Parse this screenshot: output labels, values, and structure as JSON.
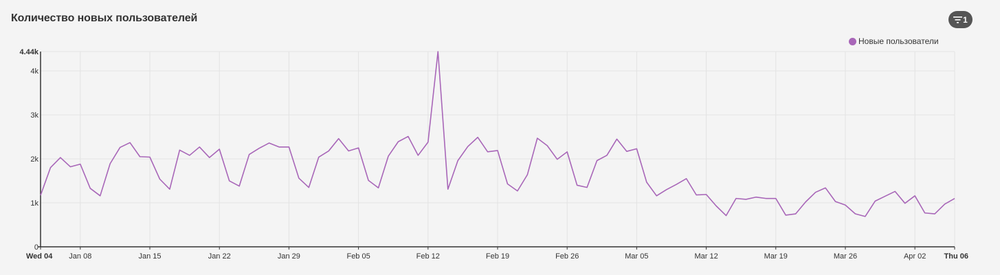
{
  "header": {
    "title": "Количество новых пользователей",
    "filter_count": "1"
  },
  "colors": {
    "series": "#a866b8",
    "grid": "#e3e3e3",
    "axis": "#333333",
    "background": "#f4f4f4"
  },
  "icons": {
    "filter": "filter-icon"
  },
  "chart_data": {
    "type": "line",
    "legend_position": "top-right",
    "grid": true,
    "ylim": [
      0,
      4440
    ],
    "y_ticks": [
      {
        "value": 0,
        "label": "0"
      },
      {
        "value": 1000,
        "label": "1k"
      },
      {
        "value": 2000,
        "label": "2k"
      },
      {
        "value": 3000,
        "label": "3k"
      },
      {
        "value": 4000,
        "label": "4k"
      },
      {
        "value": 4440,
        "label": "4.44k",
        "bold": true
      }
    ],
    "x_ticks": [
      {
        "index": 0,
        "label": "Wed 04",
        "bold": true
      },
      {
        "index": 4,
        "label": "Jan 08"
      },
      {
        "index": 11,
        "label": "Jan 15"
      },
      {
        "index": 18,
        "label": "Jan 22"
      },
      {
        "index": 25,
        "label": "Jan 29"
      },
      {
        "index": 32,
        "label": "Feb 05"
      },
      {
        "index": 39,
        "label": "Feb 12"
      },
      {
        "index": 46,
        "label": "Feb 19"
      },
      {
        "index": 53,
        "label": "Feb 26"
      },
      {
        "index": 60,
        "label": "Mar 05"
      },
      {
        "index": 67,
        "label": "Mar 12"
      },
      {
        "index": 74,
        "label": "Mar 19"
      },
      {
        "index": 81,
        "label": "Mar 26"
      },
      {
        "index": 88,
        "label": "Apr 02"
      },
      {
        "index": 92,
        "label": "Thu 06",
        "bold": true
      }
    ],
    "series": [
      {
        "name": "Новые пользователи",
        "values": [
          1170,
          1800,
          2030,
          1820,
          1880,
          1330,
          1160,
          1890,
          2260,
          2370,
          2050,
          2040,
          1540,
          1310,
          2200,
          2080,
          2270,
          2030,
          2220,
          1500,
          1380,
          2100,
          2240,
          2360,
          2270,
          2270,
          1560,
          1350,
          2040,
          2180,
          2460,
          2180,
          2250,
          1510,
          1340,
          2060,
          2390,
          2510,
          2080,
          2380,
          4440,
          1310,
          1960,
          2280,
          2490,
          2160,
          2190,
          1430,
          1270,
          1640,
          2470,
          2300,
          1990,
          2160,
          1400,
          1350,
          1960,
          2080,
          2450,
          2170,
          2230,
          1470,
          1160,
          1300,
          1420,
          1550,
          1180,
          1190,
          930,
          710,
          1100,
          1080,
          1130,
          1100,
          1100,
          720,
          750,
          1020,
          1240,
          1340,
          1030,
          950,
          750,
          690,
          1040,
          1150,
          1260,
          990,
          1160,
          770,
          750,
          970,
          1100
        ]
      }
    ]
  }
}
